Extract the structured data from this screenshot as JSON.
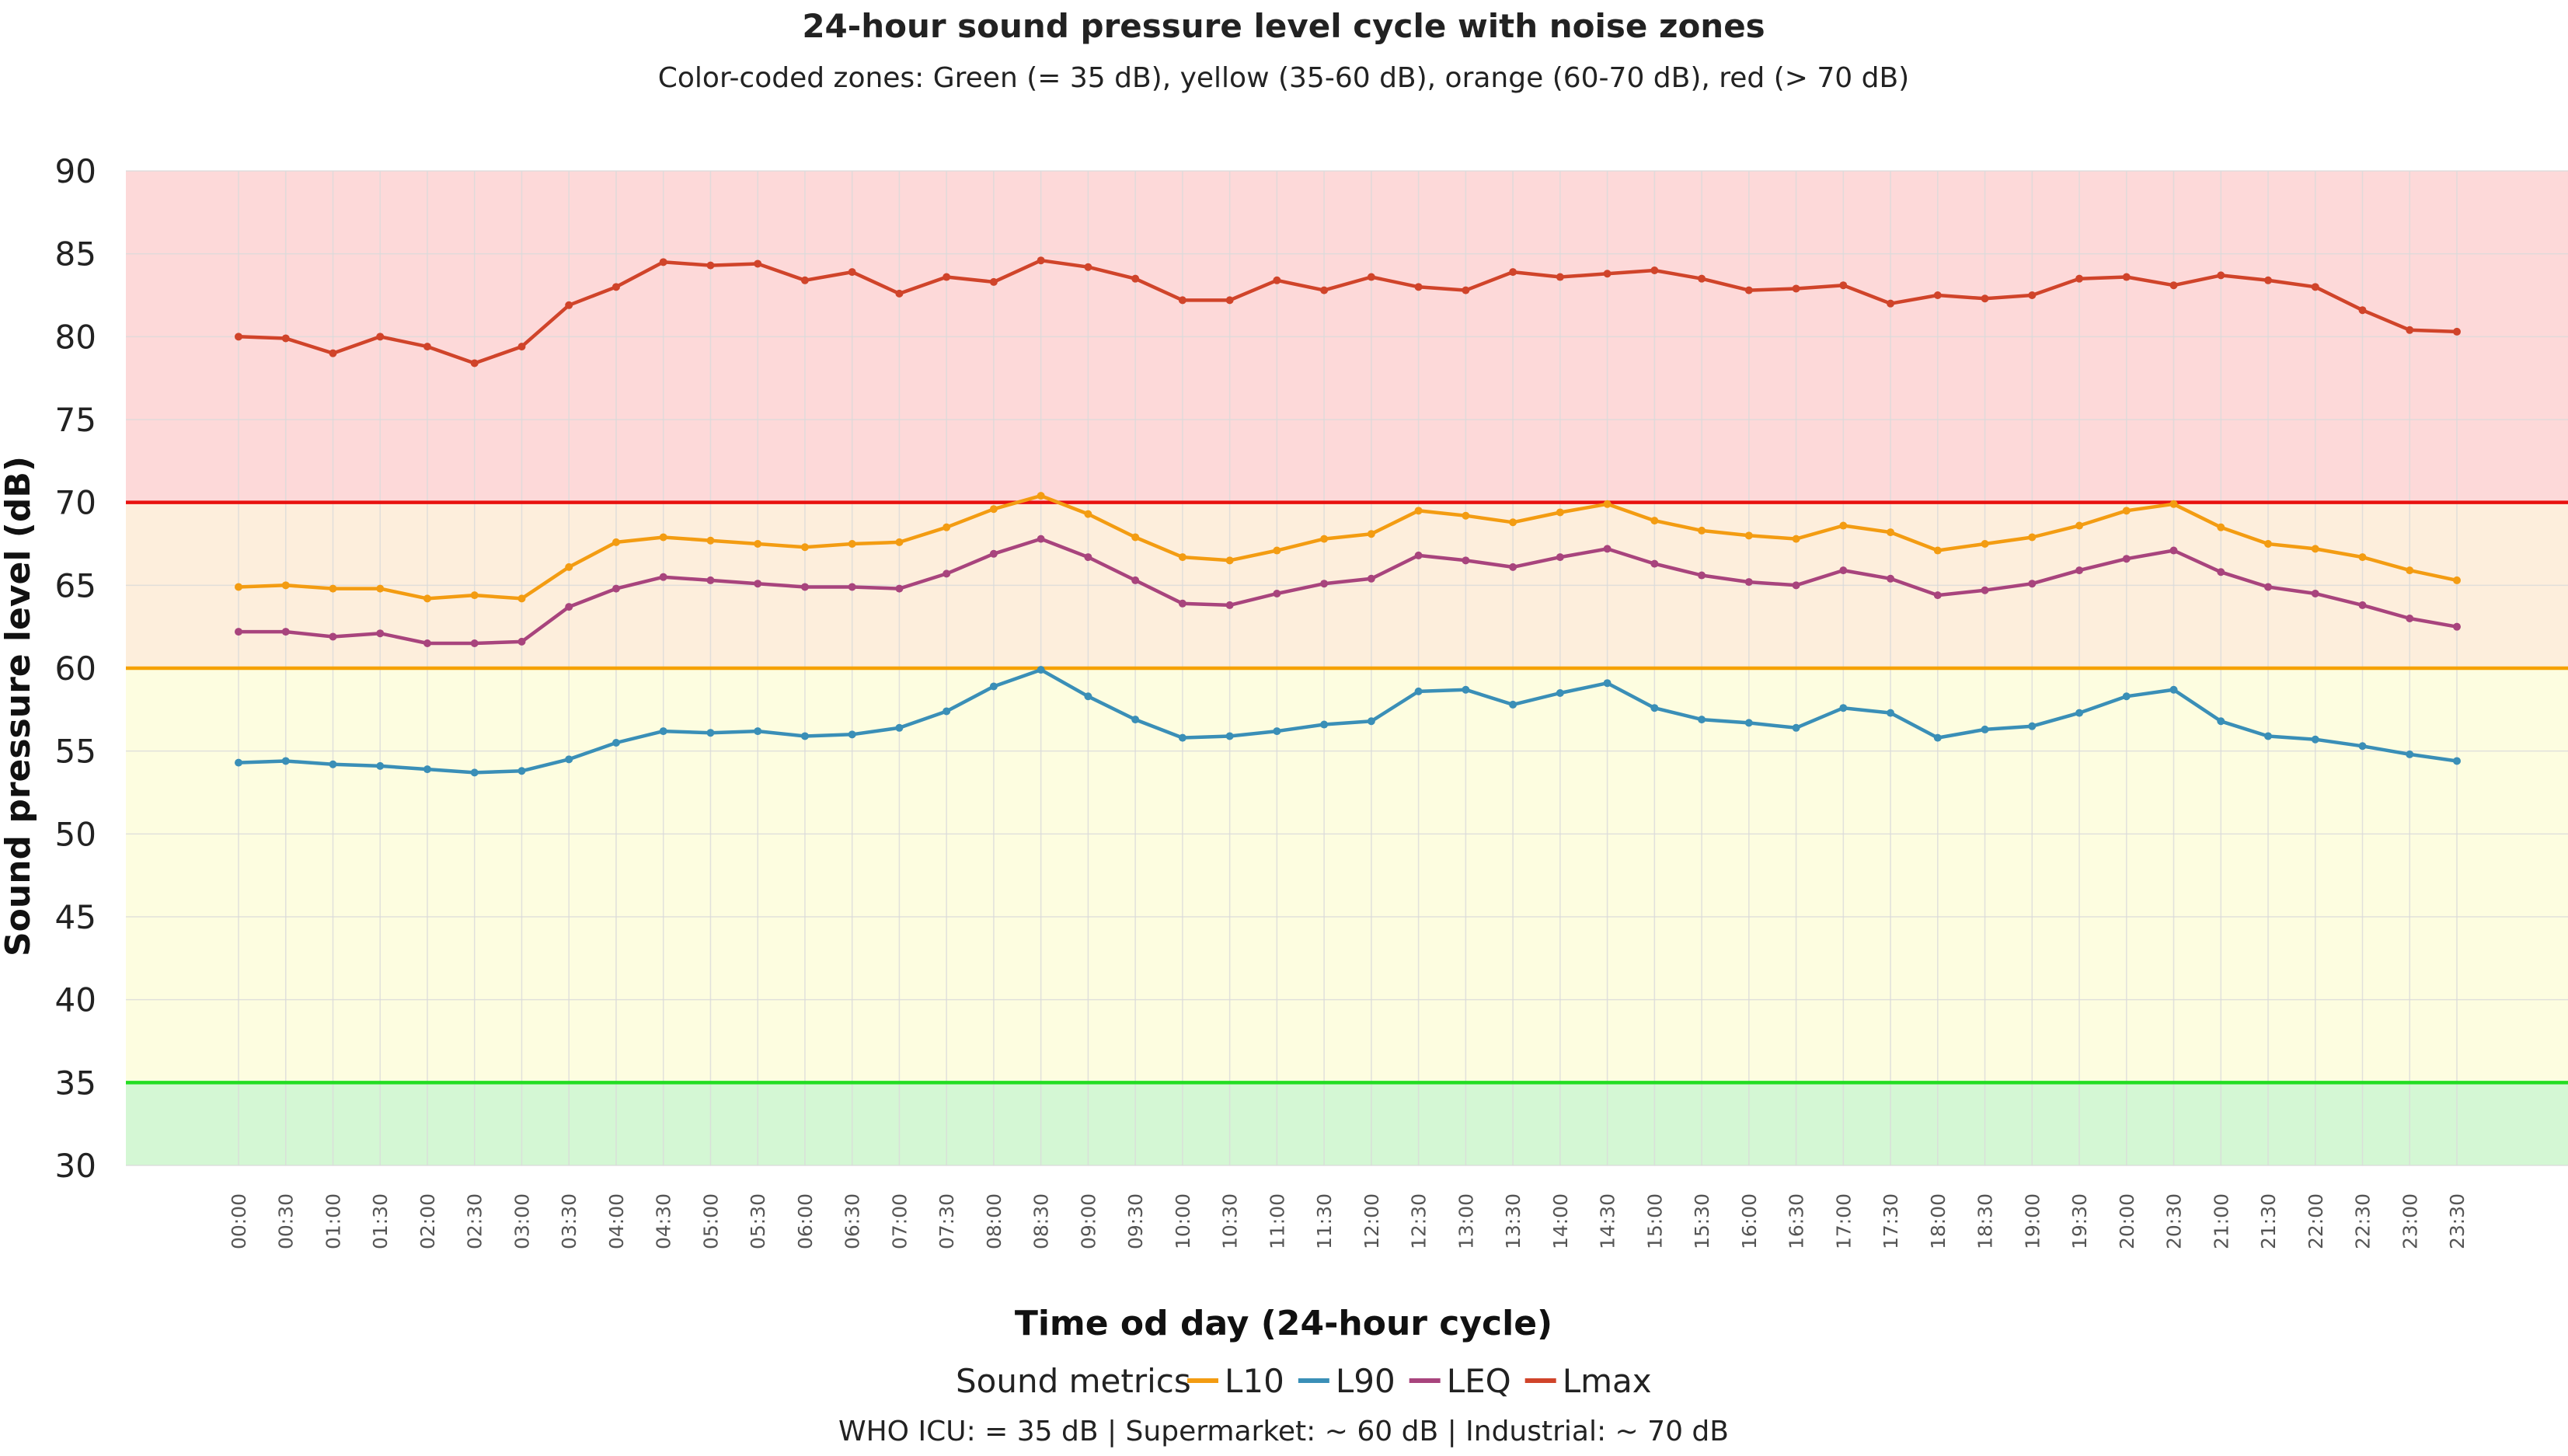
{
  "chart_data": {
    "type": "line",
    "title": "24-hour sound pressure level cycle with noise zones",
    "subtitle": "Color-coded zones: Green (= 35 dB), yellow (35-60 dB), orange (60-70 dB), red (> 70 dB)",
    "xlabel": "Time od day (24-hour cycle)",
    "ylabel": "Sound pressure level (dB)",
    "ylim": [
      30,
      90
    ],
    "yticks": [
      30,
      35,
      40,
      45,
      50,
      55,
      60,
      65,
      70,
      75,
      80,
      85,
      90
    ],
    "grid": true,
    "legend_position": "bottom",
    "legend_title": "Sound metrics",
    "footnote": "WHO ICU: = 35 dB | Supermarket: ~ 60 dB | Industrial: ~ 70 dB",
    "zones": [
      {
        "name": "green",
        "from": 30,
        "to": 35,
        "color": "#d4f7d4"
      },
      {
        "name": "yellow",
        "from": 35,
        "to": 60,
        "color": "#fdfde0"
      },
      {
        "name": "orange",
        "from": 60,
        "to": 70,
        "color": "#fdeedc"
      },
      {
        "name": "red",
        "from": 70,
        "to": 90,
        "color": "#fdd9d9"
      }
    ],
    "threshold_lines": [
      {
        "value": 35,
        "color": "#22dd22"
      },
      {
        "value": 60,
        "color": "#f5a100"
      },
      {
        "value": 70,
        "color": "#e8110f"
      }
    ],
    "x": [
      "00:00",
      "00:30",
      "01:00",
      "01:30",
      "02:00",
      "02:30",
      "03:00",
      "03:30",
      "04:00",
      "04:30",
      "05:00",
      "05:30",
      "06:00",
      "06:30",
      "07:00",
      "07:30",
      "08:00",
      "08:30",
      "09:00",
      "09:30",
      "10:00",
      "10:30",
      "11:00",
      "11:30",
      "12:00",
      "12:30",
      "13:00",
      "13:30",
      "14:00",
      "14:30",
      "15:00",
      "15:30",
      "16:00",
      "16:30",
      "17:00",
      "17:30",
      "18:00",
      "18:30",
      "19:00",
      "19:30",
      "20:00",
      "20:30",
      "21:00",
      "21:30",
      "22:00",
      "22:30",
      "23:00",
      "23:30"
    ],
    "series": [
      {
        "name": "L10",
        "color": "#f39c12",
        "values": [
          64.9,
          65.0,
          64.8,
          64.8,
          64.2,
          64.4,
          64.2,
          66.1,
          67.6,
          67.9,
          67.7,
          67.5,
          67.3,
          67.5,
          67.6,
          68.5,
          69.6,
          70.4,
          69.3,
          67.9,
          66.7,
          66.5,
          67.1,
          67.8,
          68.1,
          69.5,
          69.2,
          68.8,
          69.4,
          69.9,
          68.9,
          68.3,
          68.0,
          67.8,
          68.6,
          68.2,
          67.1,
          67.5,
          67.9,
          68.6,
          69.5,
          69.9,
          68.5,
          67.5,
          67.2,
          66.7,
          65.9,
          65.3
        ]
      },
      {
        "name": "L90",
        "color": "#3a8fb7",
        "values": [
          54.3,
          54.4,
          54.2,
          54.1,
          53.9,
          53.7,
          53.8,
          54.5,
          55.5,
          56.2,
          56.1,
          56.2,
          55.9,
          56.0,
          56.4,
          57.4,
          58.9,
          59.9,
          58.3,
          56.9,
          55.8,
          55.9,
          56.2,
          56.6,
          56.8,
          58.6,
          58.7,
          57.8,
          58.5,
          59.1,
          57.6,
          56.9,
          56.7,
          56.4,
          57.6,
          57.3,
          55.8,
          56.3,
          56.5,
          57.3,
          58.3,
          58.7,
          56.8,
          55.9,
          55.7,
          55.3,
          54.8,
          54.4
        ]
      },
      {
        "name": "LEQ",
        "color": "#a8447d",
        "values": [
          62.2,
          62.2,
          61.9,
          62.1,
          61.5,
          61.5,
          61.6,
          63.7,
          64.8,
          65.5,
          65.3,
          65.1,
          64.9,
          64.9,
          64.8,
          65.7,
          66.9,
          67.8,
          66.7,
          65.3,
          63.9,
          63.8,
          64.5,
          65.1,
          65.4,
          66.8,
          66.5,
          66.1,
          66.7,
          67.2,
          66.3,
          65.6,
          65.2,
          65.0,
          65.9,
          65.4,
          64.4,
          64.7,
          65.1,
          65.9,
          66.6,
          67.1,
          65.8,
          64.9,
          64.5,
          63.8,
          63.0,
          62.5
        ]
      },
      {
        "name": "Lmax",
        "color": "#d0442a",
        "values": [
          80.0,
          79.9,
          79.0,
          80.0,
          79.4,
          78.4,
          79.4,
          81.9,
          83.0,
          84.5,
          84.3,
          84.4,
          83.4,
          83.9,
          82.6,
          83.6,
          83.3,
          84.6,
          84.2,
          83.5,
          82.2,
          82.2,
          83.4,
          82.8,
          83.6,
          83.0,
          82.8,
          83.9,
          83.6,
          83.8,
          84.0,
          83.5,
          82.8,
          82.9,
          83.1,
          82.0,
          82.5,
          82.3,
          82.5,
          83.5,
          83.6,
          83.1,
          83.7,
          83.4,
          83.0,
          81.6,
          80.4,
          80.3
        ]
      }
    ]
  }
}
